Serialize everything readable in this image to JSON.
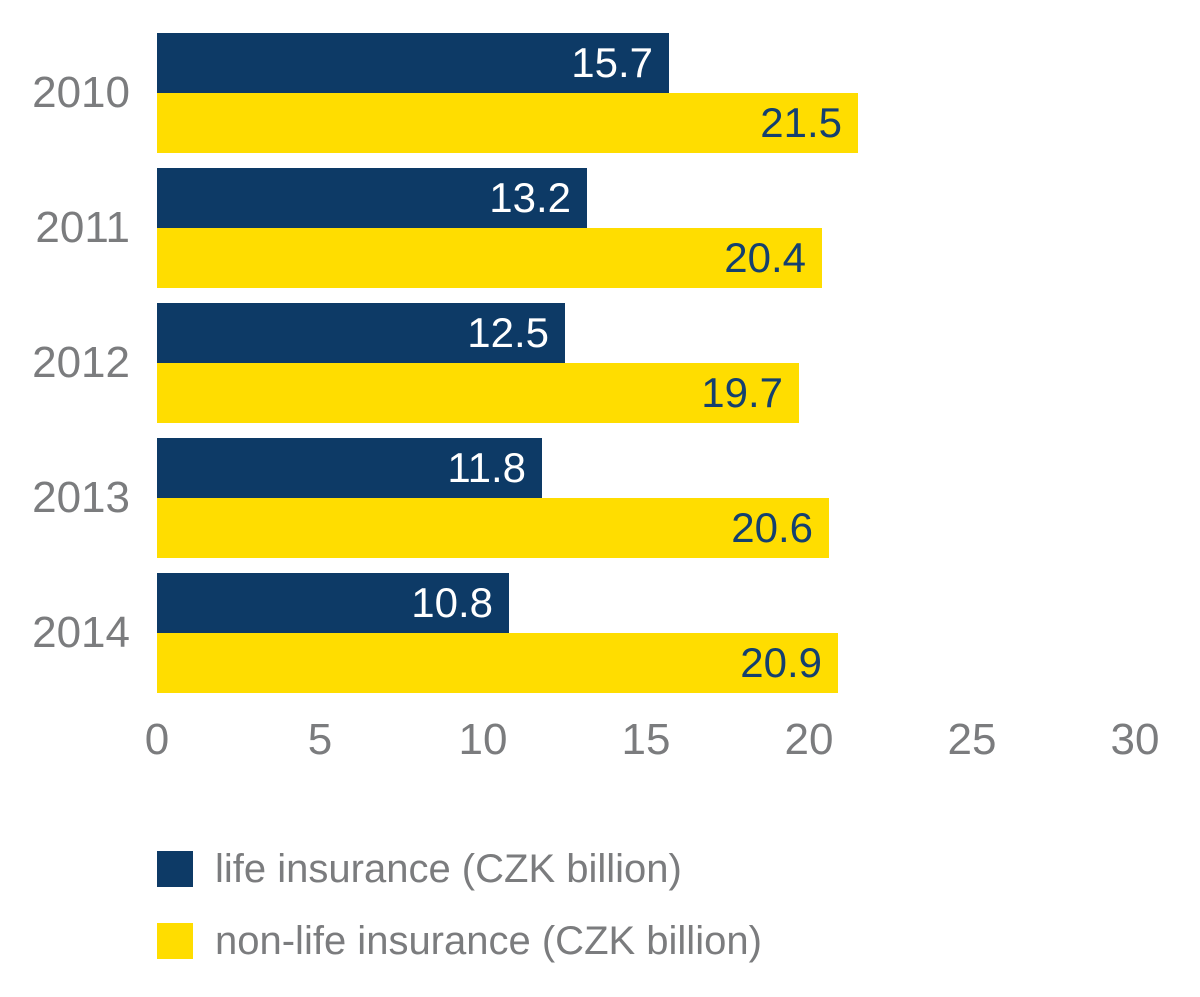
{
  "chart_data": {
    "type": "bar",
    "orientation": "horizontal",
    "title": "",
    "xlabel": "",
    "ylabel": "",
    "categories": [
      "2010",
      "2011",
      "2012",
      "2013",
      "2014"
    ],
    "series": [
      {
        "name": "life insurance (CZK billion)",
        "color": "#0d3a66",
        "label_color": "#ffffff",
        "values": [
          15.7,
          13.2,
          12.5,
          11.8,
          10.8
        ]
      },
      {
        "name": "non-life insurance (CZK billion)",
        "color": "#ffdd00",
        "label_color": "#14406f",
        "values": [
          21.5,
          20.4,
          19.7,
          20.6,
          20.9
        ]
      }
    ],
    "xlim": [
      0,
      30
    ],
    "xticks": [
      0,
      5,
      10,
      15,
      20,
      25,
      30
    ],
    "grid": false,
    "value_labels": "inside-end",
    "legend_position": "bottom-left"
  },
  "colors": {
    "background": "#ffffff",
    "axis_text": "#7b7c7e",
    "navy": "#0d3a66",
    "yellow": "#ffdd00"
  }
}
